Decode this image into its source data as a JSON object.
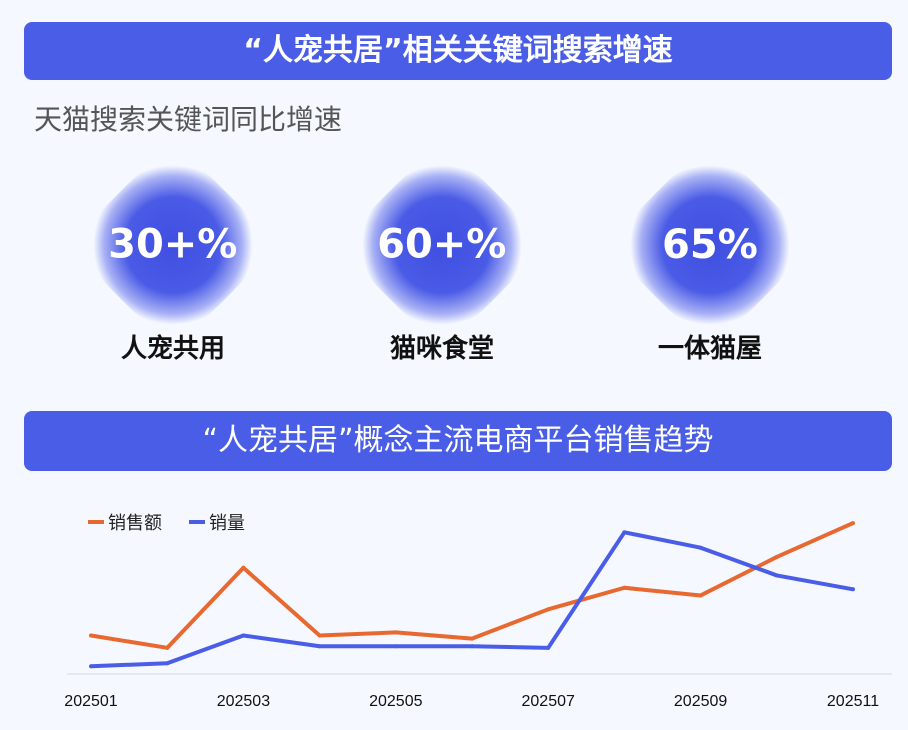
{
  "header": {
    "title": "“人宠共居”相关关键词搜索增速"
  },
  "subtitle": "天猫搜索关键词同比增速",
  "stats": [
    {
      "value": "30+%",
      "label": "人宠共用"
    },
    {
      "value": "60+%",
      "label": "猫咪食堂"
    },
    {
      "value": "65%",
      "label": "一体猫屋"
    }
  ],
  "section2": {
    "title": "“人宠共居”概念主流电商平台销售趋势"
  },
  "colors": {
    "banner": "#4a5de6",
    "sales": "#e8692f",
    "volume": "#4a5de6"
  },
  "chart_data": {
    "type": "line",
    "categories": [
      "202501",
      "202502",
      "202503",
      "202504",
      "202505",
      "202506",
      "202507",
      "202508",
      "202509",
      "202510",
      "202511"
    ],
    "tick_labels": [
      "202501",
      "202503",
      "202505",
      "202507",
      "202509",
      "202511"
    ],
    "series": [
      {
        "name": "销售额",
        "values": [
          25,
          17,
          69,
          25,
          27,
          23,
          42,
          56,
          51,
          76,
          98
        ]
      },
      {
        "name": "销量",
        "values": [
          5,
          7,
          25,
          18,
          18,
          18,
          17,
          92,
          82,
          64,
          55
        ]
      }
    ],
    "ylim": [
      0,
      100
    ],
    "y_axis_shown": false,
    "grid": false,
    "legend": "top-left"
  }
}
